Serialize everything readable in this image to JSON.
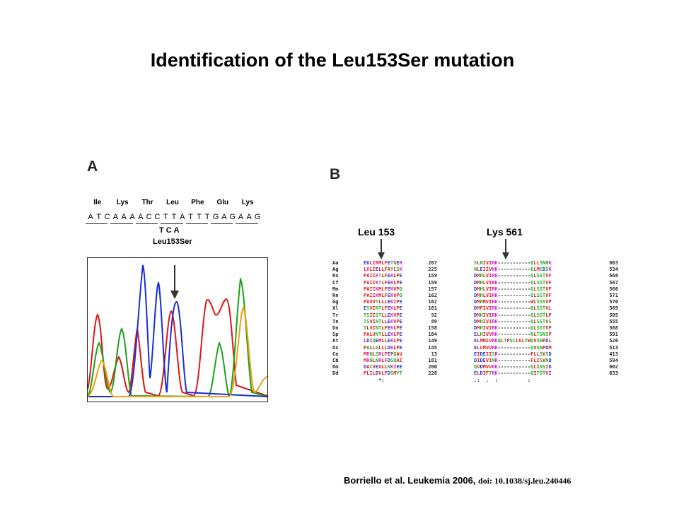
{
  "title": "Identification of the Leu153Ser mutation",
  "panel_a": {
    "label": "A",
    "amino_acids": [
      "Ile",
      "Lys",
      "Thr",
      "Leu",
      "Phe",
      "Glu",
      "Lys"
    ],
    "nucleotides": [
      "A",
      "T",
      "C",
      "A",
      "A",
      "A",
      "A",
      "C",
      "C",
      "T",
      "T",
      "A",
      "T",
      "T",
      "T",
      "G",
      "A",
      "G",
      "A",
      "A",
      "G"
    ],
    "mutant_codon": "TCA",
    "mutation_label": "Leu153Ser"
  },
  "panel_b": {
    "label": "B",
    "left_title": "Leu 153",
    "right_title": "Lys 561",
    "rows": [
      {
        "sp": "Aa",
        "s1": "EDLIRMLFETVER",
        "n1": "207",
        "s2": "SLNIVIKK-----------QLLSNNK",
        "n2": "603"
      },
      {
        "sp": "Ag",
        "s1": "LKLIELLFAYLSK",
        "n1": "225",
        "s2": "NLEIIVKK-----------QLMCDSK",
        "n2": "534"
      },
      {
        "sp": "Hs",
        "s1": "PAIIKTLFEKLPE",
        "n1": "159",
        "s2": "DMHLVIRK-----------QLSSTVF",
        "n2": "568"
      },
      {
        "sp": "Cf",
        "s1": "PAIIKTLFEKLPE",
        "n1": "159",
        "s2": "DMHLVIRK-----------QLSSTVF",
        "n2": "567"
      },
      {
        "sp": "Mm",
        "s1": "PAIIKMLFEKVPQ",
        "n1": "157",
        "s2": "DMHLVIRK-----------QLSSTVF",
        "n2": "566"
      },
      {
        "sp": "Rn",
        "s1": "PAIIKMLFEKVPQ",
        "n1": "162",
        "s2": "DMHLVIRK-----------QLSSTVF",
        "n2": "571"
      },
      {
        "sp": "Gg",
        "s1": "PAVVTLLLEKIPE",
        "n1": "162",
        "s2": "DMHMVIRK-----------WLSSSVP",
        "n2": "570"
      },
      {
        "sp": "Xl",
        "s1": "ESVINTLFEKLPE",
        "n1": "161",
        "s2": "DMFIVIRK-----------QLSSTVL",
        "n2": "569"
      },
      {
        "sp": "Tr",
        "s1": "TSIISTLLEKVPE",
        "n1": "92",
        "s2": "DMHIVIRK-----------QLSSTLP",
        "n2": "505"
      },
      {
        "sp": "Tn",
        "s1": "TSVINTLLEKVPE",
        "n1": "89",
        "s2": "DMHIVIRK-----------QLSSTVS",
        "n2": "555"
      },
      {
        "sp": "Dn",
        "s1": "TLVINTLFEKLPE",
        "n1": "158",
        "s2": "DMHIVIRK-----------QLSSTVP",
        "n2": "568"
      },
      {
        "sp": "Sp",
        "s1": "PALVNTLLEKLPE",
        "n1": "184",
        "s2": "ELHIVVRK-----------NLTSNSP",
        "n2": "591"
      },
      {
        "sp": "At",
        "s1": "LDIQEMLLEKLPE",
        "n1": "149",
        "s2": "ELMMIVRKQLTPSCLVLYWQVSNPDL",
        "n2": "526"
      },
      {
        "sp": "Os",
        "s1": "PGLLGLLLDKLPE",
        "n1": "145",
        "s2": "ELLMVVRK-----------QVSNPDM",
        "n2": "513"
      },
      {
        "sp": "Ce",
        "s1": "MRNLSRLFEPQAV",
        "n1": "13",
        "s2": "EIDEIISR-----------FLLSVSD",
        "n2": "413"
      },
      {
        "sp": "Cb",
        "s1": "MRNLNRLFDSQAI",
        "n1": "181",
        "s2": "DIDEVINR-----------FLISVND",
        "n2": "594"
      },
      {
        "sp": "Dm",
        "s1": "DACVEVLLNKIEE",
        "n1": "200",
        "s2": "QVDMVVKK-----------QLINSID",
        "n2": "602"
      },
      {
        "sp": "Dd",
        "s1": "PLILDVLFDSMYT",
        "n1": "228",
        "s2": "ELDIFTRK-----------QITSTKI",
        "n2": "633"
      }
    ],
    "consensus_left": "     *:",
    "consensus_right": ".:  .  :          :"
  },
  "citation": {
    "text": "Borriello et al. Leukemia 2006, ",
    "doi": "doi: 10.1038/sj.leu.240446"
  },
  "colors": {
    "hydrophobic": "#e81818",
    "polar": "#19b21b",
    "acidic": "#1d3ae0",
    "basic": "#d81ad8",
    "trace_A": "#19a319",
    "trace_C": "#1a2fd6",
    "trace_G": "#f0a010",
    "trace_T": "#e01515"
  }
}
